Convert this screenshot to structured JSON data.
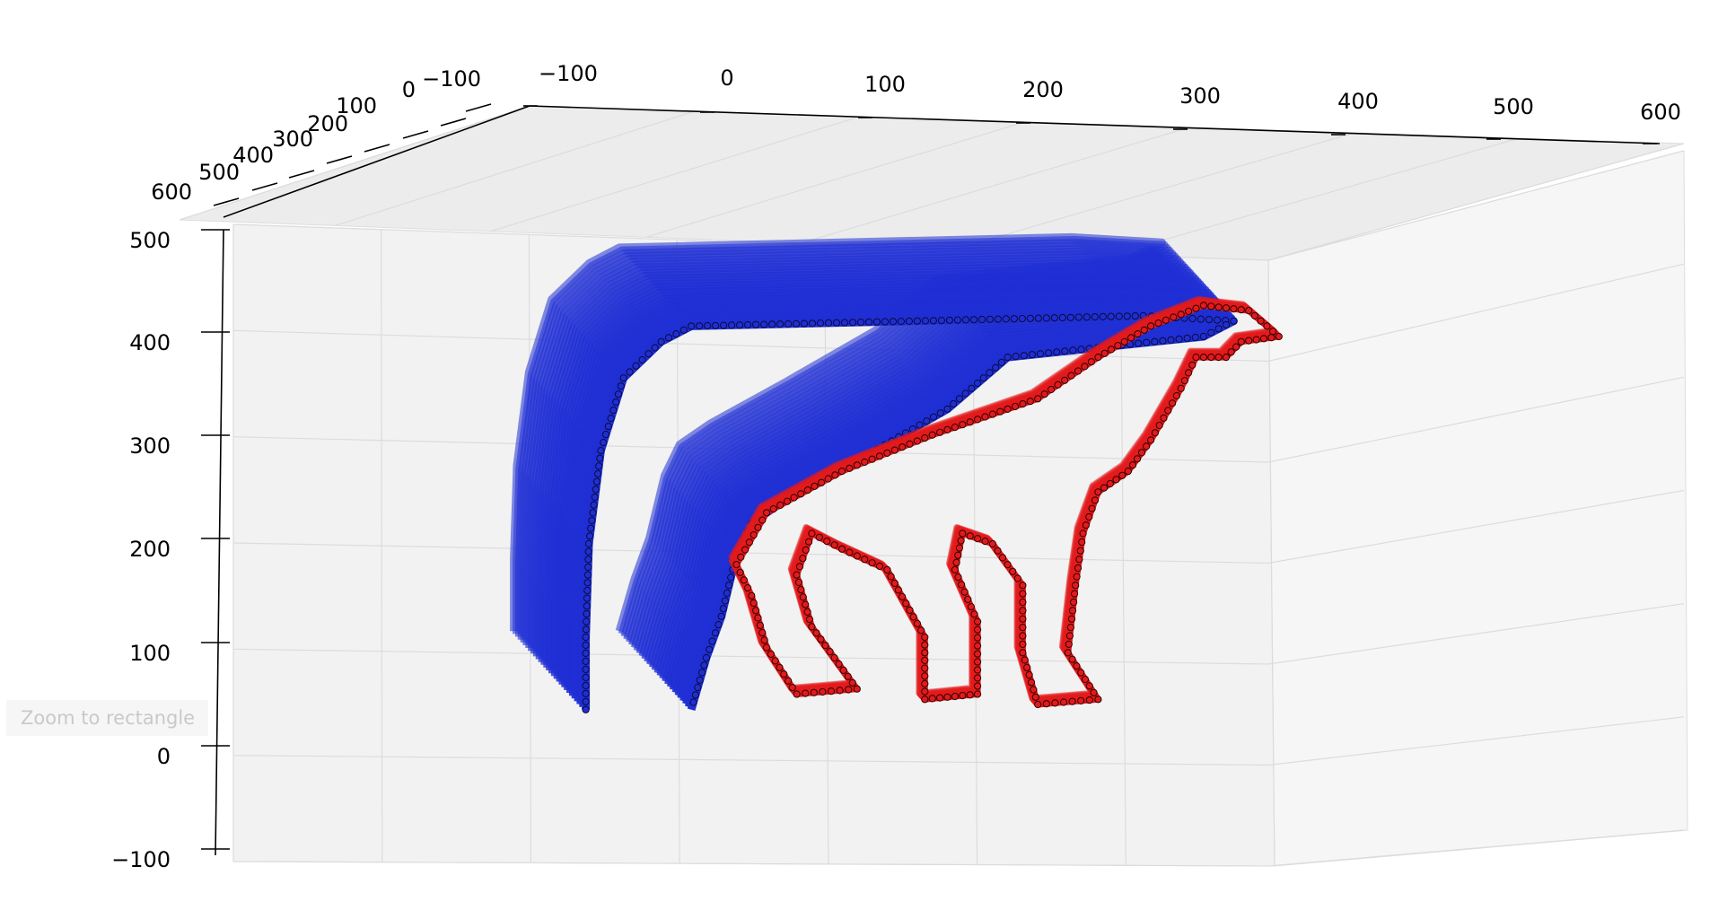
{
  "toolbar": {
    "status_message": "Zoom to rectangle"
  },
  "chart_data": {
    "type": "scatter",
    "projection": "3d",
    "title": "",
    "xlabel": "",
    "ylabel": "",
    "zlabel": "",
    "grid": true,
    "legend": "none",
    "axes": {
      "x": {
        "range": [
          -100,
          600
        ],
        "ticks": [
          "−100",
          "0",
          "100",
          "200",
          "300",
          "400",
          "500",
          "600"
        ]
      },
      "y": {
        "range": [
          -100,
          600
        ],
        "ticks": [
          "−100",
          "0",
          "100",
          "200",
          "300",
          "400",
          "500",
          "600"
        ]
      },
      "z": {
        "range": [
          -100,
          500
        ],
        "ticks": [
          "−100",
          "0",
          "100",
          "200",
          "300",
          "400",
          "500"
        ]
      }
    },
    "series": [
      {
        "color": "#1f2fd4",
        "marker_edge": "#0a0a3a",
        "extruded_depth_y": [
          0,
          500
        ],
        "profile_xz": [
          [
            150,
            40
          ],
          [
            150,
            110
          ],
          [
            152,
            200
          ],
          [
            160,
            290
          ],
          [
            175,
            360
          ],
          [
            200,
            395
          ],
          [
            220,
            410
          ],
          [
            520,
            420
          ],
          [
            580,
            415
          ],
          [
            560,
            400
          ],
          [
            430,
            380
          ],
          [
            390,
            330
          ],
          [
            330,
            280
          ],
          [
            280,
            240
          ],
          [
            260,
            220
          ],
          [
            250,
            190
          ],
          [
            240,
            130
          ],
          [
            230,
            90
          ],
          [
            220,
            40
          ]
        ]
      },
      {
        "color": "#e31a1c",
        "marker_edge": "#2a0000",
        "extruded_depth_y": [
          0,
          40
        ],
        "profile_xz": [
          [
            250,
            180
          ],
          [
            270,
            230
          ],
          [
            320,
            270
          ],
          [
            380,
            305
          ],
          [
            450,
            340
          ],
          [
            490,
            380
          ],
          [
            525,
            410
          ],
          [
            560,
            430
          ],
          [
            590,
            425
          ],
          [
            610,
            400
          ],
          [
            585,
            395
          ],
          [
            575,
            380
          ],
          [
            555,
            380
          ],
          [
            545,
            350
          ],
          [
            525,
            300
          ],
          [
            510,
            270
          ],
          [
            490,
            250
          ],
          [
            480,
            210
          ],
          [
            475,
            160
          ],
          [
            470,
            95
          ],
          [
            490,
            50
          ],
          [
            450,
            45
          ],
          [
            440,
            95
          ],
          [
            440,
            160
          ],
          [
            420,
            200
          ],
          [
            400,
            210
          ],
          [
            395,
            175
          ],
          [
            410,
            125
          ],
          [
            410,
            55
          ],
          [
            375,
            50
          ],
          [
            375,
            110
          ],
          [
            350,
            175
          ],
          [
            320,
            195
          ],
          [
            300,
            210
          ],
          [
            290,
            170
          ],
          [
            300,
            120
          ],
          [
            330,
            60
          ],
          [
            290,
            55
          ],
          [
            270,
            100
          ],
          [
            260,
            150
          ],
          [
            250,
            180
          ]
        ]
      }
    ]
  }
}
